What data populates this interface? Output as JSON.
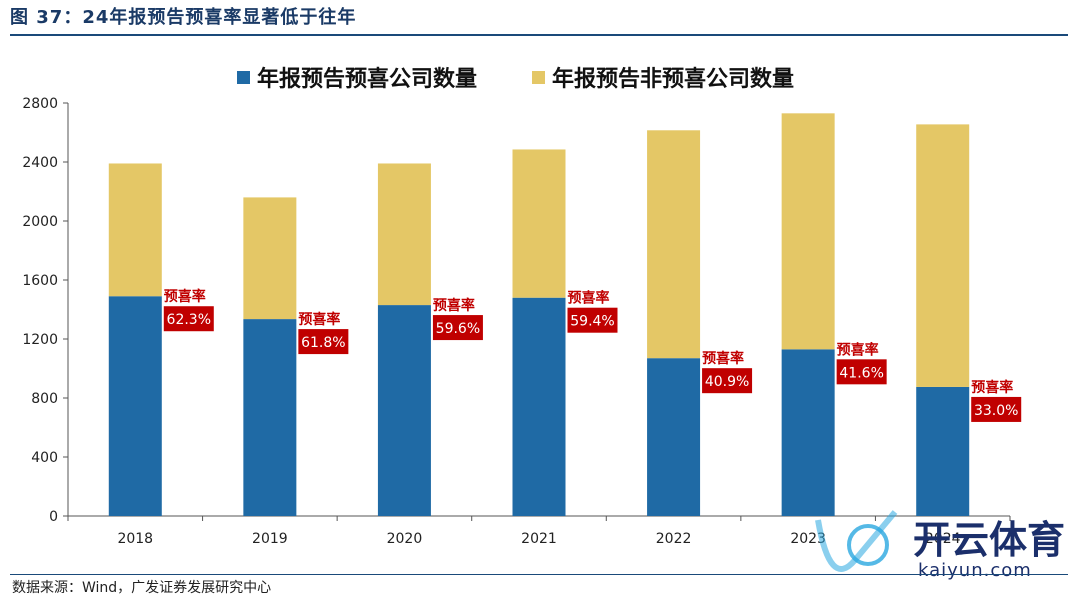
{
  "header": {
    "title": "图 37：24年报预告预喜率显著低于往年"
  },
  "footer": {
    "source": "数据来源：Wind，广发证券发展研究中心"
  },
  "watermark": {
    "brand": "开云体育",
    "url": "kaiyun.com"
  },
  "colors": {
    "positive": "#1f6aa5",
    "non_positive": "#e4c766",
    "rate_box": "#c00000",
    "title": "#1a3a66"
  },
  "chart_data": {
    "type": "bar",
    "stacked": true,
    "title": "",
    "xlabel": "",
    "ylabel": "",
    "ylim": [
      0,
      2800
    ],
    "yticks": [
      0,
      400,
      800,
      1200,
      1600,
      2000,
      2400,
      2800
    ],
    "categories": [
      "2018",
      "2019",
      "2020",
      "2021",
      "2022",
      "2023",
      "2024"
    ],
    "series": [
      {
        "name": "年报预告预喜公司数量",
        "values": [
          1490,
          1335,
          1430,
          1480,
          1070,
          1130,
          875
        ]
      },
      {
        "name": "年报预告非预喜公司数量",
        "values": [
          900,
          825,
          960,
          1005,
          1545,
          1600,
          1780
        ]
      }
    ],
    "annotation_label": "预喜率",
    "rates": [
      "62.3%",
      "61.8%",
      "59.6%",
      "59.4%",
      "40.9%",
      "41.6%",
      "33.0%"
    ],
    "legend_position": "top"
  }
}
